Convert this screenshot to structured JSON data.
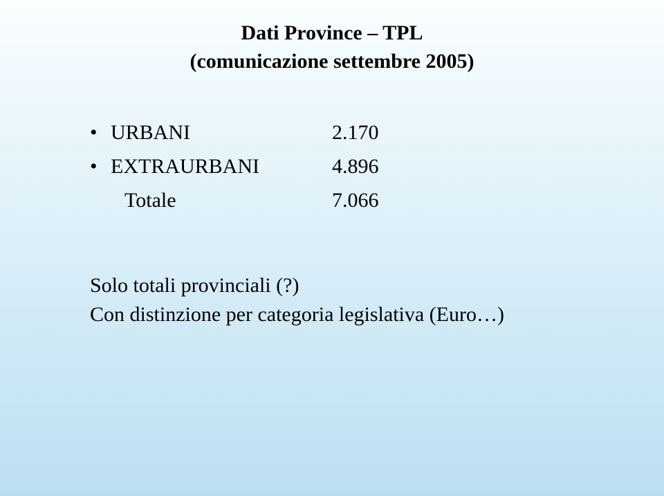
{
  "background": {
    "gradient_top": "#fafeff",
    "gradient_bottom": "#bbdff2"
  },
  "title": {
    "line1": "Dati Province – TPL",
    "line2": "(comunicazione settembre 2005)"
  },
  "rows": [
    {
      "bullet": "•",
      "label": "URBANI",
      "value": "2.170"
    },
    {
      "bullet": "•",
      "label": "EXTRAURBANI",
      "value": "4.896"
    }
  ],
  "total": {
    "label": "Totale",
    "value": "7.066"
  },
  "notes": {
    "line1": "Solo totali provinciali (?)",
    "line2": "Con distinzione per categoria legislativa (Euro…)"
  }
}
